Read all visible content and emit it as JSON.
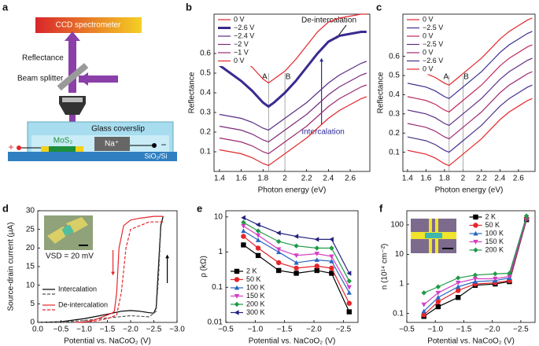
{
  "chart_data": [
    {
      "panel_label": "a",
      "type": "diagram",
      "labels": {
        "ccd_spectrometer": "CCD spectrometer",
        "reflectance": "Reflectance",
        "beam_splitter": "Beam splitter",
        "glass_coverslip": "Glass coverslip",
        "mos2": "MoS₂",
        "na_ion": "Na⁺",
        "substrate": "SiO₂/Si",
        "plus": "+",
        "minus": "−"
      }
    },
    {
      "panel_label": "b",
      "type": "line",
      "xlabel": "Photon energy (eV)",
      "ylabel": "Reflectance",
      "x": [
        1.4,
        1.5,
        1.6,
        1.7,
        1.8,
        1.85,
        1.9,
        2.0,
        2.1,
        2.2,
        2.3,
        2.4,
        2.5,
        2.6,
        2.7,
        2.75
      ],
      "xlim": [
        1.35,
        2.78
      ],
      "xticks": [
        1.4,
        1.6,
        1.8,
        2,
        2.2,
        2.4,
        2.6
      ],
      "ylim": [
        0,
        0.8
      ],
      "yticks": [
        0.1,
        0.2,
        0.3,
        0.4,
        0.5,
        0.6
      ],
      "legend": "upper left",
      "annotations": [
        "A",
        "B",
        "De-intercalation",
        "Intercalation"
      ],
      "series": [
        {
          "name": "0 V",
          "color": "#e4262c",
          "values": [
            0.64,
            0.61,
            0.58,
            0.53,
            0.47,
            0.45,
            0.47,
            0.51,
            0.57,
            0.64,
            0.71,
            0.76,
            0.78,
            0.79,
            0.8,
            0.8
          ]
        },
        {
          "name": "−2.6 V",
          "color": "#3a2a8f",
          "style": "thick",
          "values": [
            0.54,
            0.5,
            0.46,
            0.41,
            0.35,
            0.33,
            0.35,
            0.4,
            0.46,
            0.53,
            0.6,
            0.66,
            0.69,
            0.7,
            0.71,
            0.71
          ]
        },
        {
          "name": "−2.4 V",
          "color": "#5a2b86",
          "values": [
            0.29,
            0.28,
            0.27,
            0.25,
            0.22,
            0.21,
            0.23,
            0.27,
            0.31,
            0.35,
            0.4,
            0.45,
            0.49,
            0.52,
            0.55,
            0.56
          ]
        },
        {
          "name": "−2 V",
          "color": "#7a2a7c",
          "values": [
            0.23,
            0.22,
            0.21,
            0.19,
            0.16,
            0.15,
            0.17,
            0.21,
            0.25,
            0.29,
            0.34,
            0.39,
            0.43,
            0.46,
            0.49,
            0.5
          ]
        },
        {
          "name": "−1 V",
          "color": "#9c2a70",
          "values": [
            0.17,
            0.16,
            0.15,
            0.13,
            0.1,
            0.09,
            0.11,
            0.15,
            0.19,
            0.23,
            0.28,
            0.33,
            0.37,
            0.4,
            0.43,
            0.44
          ]
        },
        {
          "name": "0 V",
          "color": "#e4262c",
          "values": [
            0.11,
            0.1,
            0.09,
            0.07,
            0.04,
            0.03,
            0.05,
            0.09,
            0.13,
            0.17,
            0.22,
            0.27,
            0.31,
            0.34,
            0.37,
            0.38
          ]
        }
      ]
    },
    {
      "panel_label": "c",
      "type": "line",
      "xlabel": "Photon energy (eV)",
      "ylabel": "Reflectance",
      "x": [
        1.4,
        1.5,
        1.6,
        1.7,
        1.8,
        1.85,
        1.9,
        2.0,
        2.1,
        2.2,
        2.3,
        2.4,
        2.5,
        2.6,
        2.7,
        2.75
      ],
      "xlim": [
        1.35,
        2.78
      ],
      "xticks": [
        1.4,
        1.6,
        1.8,
        2,
        2.2,
        2.4,
        2.6
      ],
      "ylim": [
        0,
        0.82
      ],
      "yticks": [
        0.1,
        0.2,
        0.3,
        0.4,
        0.5,
        0.6
      ],
      "legend": "upper left",
      "annotations": [
        "A",
        "B"
      ],
      "series": [
        {
          "name": "0 V",
          "color": "#e4262c",
          "values": [
            0.53,
            0.52,
            0.51,
            0.49,
            0.46,
            0.45,
            0.47,
            0.51,
            0.55,
            0.59,
            0.64,
            0.69,
            0.73,
            0.76,
            0.79,
            0.8
          ]
        },
        {
          "name": "−2.5 V",
          "color": "#3b3090",
          "values": [
            0.46,
            0.45,
            0.44,
            0.42,
            0.39,
            0.38,
            0.4,
            0.44,
            0.48,
            0.52,
            0.57,
            0.62,
            0.66,
            0.69,
            0.72,
            0.73
          ]
        },
        {
          "name": "0 V",
          "color": "#c02860",
          "values": [
            0.39,
            0.38,
            0.37,
            0.35,
            0.32,
            0.31,
            0.33,
            0.37,
            0.41,
            0.45,
            0.5,
            0.55,
            0.59,
            0.62,
            0.65,
            0.66
          ]
        },
        {
          "name": "−2.5 V",
          "color": "#5b2d88",
          "values": [
            0.32,
            0.31,
            0.3,
            0.28,
            0.25,
            0.24,
            0.26,
            0.3,
            0.34,
            0.38,
            0.43,
            0.48,
            0.52,
            0.55,
            0.58,
            0.59
          ]
        },
        {
          "name": "0 V",
          "color": "#a02a70",
          "values": [
            0.25,
            0.24,
            0.23,
            0.21,
            0.18,
            0.17,
            0.19,
            0.23,
            0.27,
            0.31,
            0.36,
            0.41,
            0.45,
            0.48,
            0.51,
            0.52
          ]
        },
        {
          "name": "−2.6 V",
          "color": "#4a2f8c",
          "values": [
            0.18,
            0.17,
            0.16,
            0.14,
            0.11,
            0.1,
            0.12,
            0.16,
            0.2,
            0.24,
            0.29,
            0.34,
            0.38,
            0.41,
            0.44,
            0.45
          ]
        },
        {
          "name": "0 V",
          "color": "#e4262c",
          "values": [
            0.11,
            0.1,
            0.09,
            0.07,
            0.04,
            0.03,
            0.05,
            0.09,
            0.13,
            0.17,
            0.22,
            0.27,
            0.31,
            0.34,
            0.37,
            0.38
          ]
        }
      ]
    },
    {
      "panel_label": "d",
      "type": "line",
      "xlabel": "Potential vs. NaCoO₂ (V)",
      "ylabel": "Source-drain current (μA)",
      "xlim": [
        0,
        -3.0
      ],
      "xticks": [
        {
          "value": 0,
          "label": "0.0"
        },
        {
          "value": -0.5,
          "label": "−0.5"
        },
        {
          "value": -1.0,
          "label": "−1.0"
        },
        {
          "value": -1.5,
          "label": "−1.5"
        },
        {
          "value": -2.0,
          "label": "−2.0"
        },
        {
          "value": -2.5,
          "label": "−2.5"
        },
        {
          "value": -3.0,
          "label": "−3.0"
        }
      ],
      "ylim": [
        0,
        30
      ],
      "yticks": [
        0,
        5,
        10,
        15,
        20,
        25,
        30
      ],
      "legend": "lower left",
      "annotations": [
        "VSD = 20 mV"
      ],
      "series": [
        {
          "name": "Intercalation",
          "color": "#000000",
          "x": [
            0,
            -0.5,
            -1.0,
            -1.5,
            -1.8,
            -2.0,
            -2.2,
            -2.4,
            -2.5,
            -2.55,
            -2.6,
            -2.65,
            -2.7
          ],
          "values": [
            0,
            0.2,
            1.0,
            2.2,
            3.0,
            3.2,
            3.0,
            2.6,
            2.5,
            4,
            15,
            26,
            28.5
          ]
        },
        {
          "color": "#555555",
          "style": "dashed",
          "x": [
            0,
            -0.5,
            -1.0,
            -1.5,
            -2.0,
            -2.4,
            -2.55,
            -2.6,
            -2.65
          ],
          "values": [
            0,
            0.1,
            0.5,
            1.2,
            1.8,
            1.5,
            3,
            12,
            25
          ]
        },
        {
          "name": "De-intercalation",
          "color": "#e4262c",
          "x": [
            -2.7,
            -2.5,
            -2.2,
            -2.0,
            -1.85,
            -1.75,
            -1.7,
            -1.65,
            -1.6,
            -1.4,
            -1.2,
            -1.0,
            -0.8
          ],
          "values": [
            28.5,
            28.5,
            28,
            27.5,
            26,
            20,
            8,
            3,
            2.5,
            1.5,
            0.6,
            0.1,
            0
          ]
        },
        {
          "color": "#e4262c",
          "style": "dashed",
          "x": [
            -2.7,
            -2.4,
            -2.0,
            -1.9,
            -1.8,
            -1.7,
            -1.5,
            -1.2,
            -0.9
          ],
          "values": [
            27,
            27,
            25,
            20,
            8,
            2,
            1,
            0.3,
            0
          ]
        }
      ]
    },
    {
      "panel_label": "e",
      "type": "line",
      "markers": true,
      "xlabel": "Potential vs. NaCoO₂ (V)",
      "ylabel": "ρ (kΩ)",
      "x": [
        -0.8,
        -1.05,
        -1.4,
        -1.7,
        -2.05,
        -2.3,
        -2.6
      ],
      "xlim": [
        -0.5,
        -2.75
      ],
      "xticks": [
        {
          "value": -0.5,
          "label": "−0.5"
        },
        {
          "value": -1.0,
          "label": "−1.0"
        },
        {
          "value": -1.5,
          "label": "−1.5"
        },
        {
          "value": -2.0,
          "label": "−2.0"
        },
        {
          "value": -2.5,
          "label": "−2.5"
        }
      ],
      "yscale": "log",
      "ylim": [
        0.01,
        15
      ],
      "yticks": [
        0.01,
        0.1,
        1,
        10
      ],
      "legend": "lower left",
      "series": [
        {
          "name": "2 K",
          "color": "#000000",
          "marker": "square",
          "values": [
            1.6,
            0.8,
            0.3,
            0.25,
            0.3,
            0.25,
            0.02
          ]
        },
        {
          "name": "50 K",
          "color": "#e4262c",
          "marker": "circle",
          "values": [
            2.8,
            1.3,
            0.5,
            0.35,
            0.4,
            0.35,
            0.035
          ]
        },
        {
          "name": "100 K",
          "color": "#2a66c0",
          "marker": "triangle-up",
          "values": [
            4,
            2.2,
            1.0,
            0.5,
            0.6,
            0.55,
            0.07
          ]
        },
        {
          "name": "150 K",
          "color": "#d43ec4",
          "marker": "triangle-down",
          "values": [
            5.5,
            3,
            1.2,
            0.8,
            0.9,
            0.75,
            0.1
          ]
        },
        {
          "name": "200 K",
          "color": "#1f9a48",
          "marker": "diamond",
          "values": [
            7,
            4,
            2,
            1.5,
            1.3,
            1.3,
            0.15
          ]
        },
        {
          "name": "300 K",
          "color": "#23237e",
          "marker": "triangle-left",
          "values": [
            9.5,
            6,
            3.5,
            2.8,
            2.3,
            2.3,
            0.25
          ]
        }
      ]
    },
    {
      "panel_label": "f",
      "type": "line",
      "markers": true,
      "xlabel": "Potential vs. NaCoO₂ (V)",
      "ylabel": "n (10¹⁴ cm⁻²)",
      "x": [
        -0.8,
        -1.05,
        -1.4,
        -1.7,
        -2.05,
        -2.3,
        -2.6
      ],
      "xlim": [
        -0.5,
        -2.75
      ],
      "xticks": [
        {
          "value": -0.5,
          "label": "−0.5"
        },
        {
          "value": -1.0,
          "label": "−1.0"
        },
        {
          "value": -1.5,
          "label": "−1.5"
        },
        {
          "value": -2.0,
          "label": "−2.0"
        },
        {
          "value": -2.5,
          "label": "−2.5"
        }
      ],
      "yscale": "log",
      "ylim": [
        0.05,
        300
      ],
      "yticks": [
        0.1,
        1,
        10,
        100
      ],
      "legend": "upper center",
      "series": [
        {
          "name": "2 K",
          "color": "#000000",
          "marker": "square",
          "values": [
            0.08,
            0.17,
            0.35,
            0.9,
            1.0,
            1.2,
            150
          ]
        },
        {
          "name": "50 K",
          "color": "#e4262c",
          "marker": "circle",
          "values": [
            0.09,
            0.25,
            0.6,
            1.0,
            1.1,
            1.3,
            160
          ]
        },
        {
          "name": "100 K",
          "color": "#2a66c0",
          "marker": "triangle-up",
          "values": [
            0.12,
            0.35,
            0.8,
            1.2,
            1.3,
            1.6,
            170
          ]
        },
        {
          "name": "150 K",
          "color": "#d43ec4",
          "marker": "triangle-down",
          "values": [
            0.2,
            0.5,
            1.1,
            1.5,
            1.5,
            1.8,
            180
          ]
        },
        {
          "name": "200 K",
          "color": "#1f9a48",
          "marker": "diamond",
          "values": [
            0.5,
            0.8,
            1.6,
            2.0,
            2.2,
            2.3,
            200
          ]
        }
      ]
    }
  ]
}
